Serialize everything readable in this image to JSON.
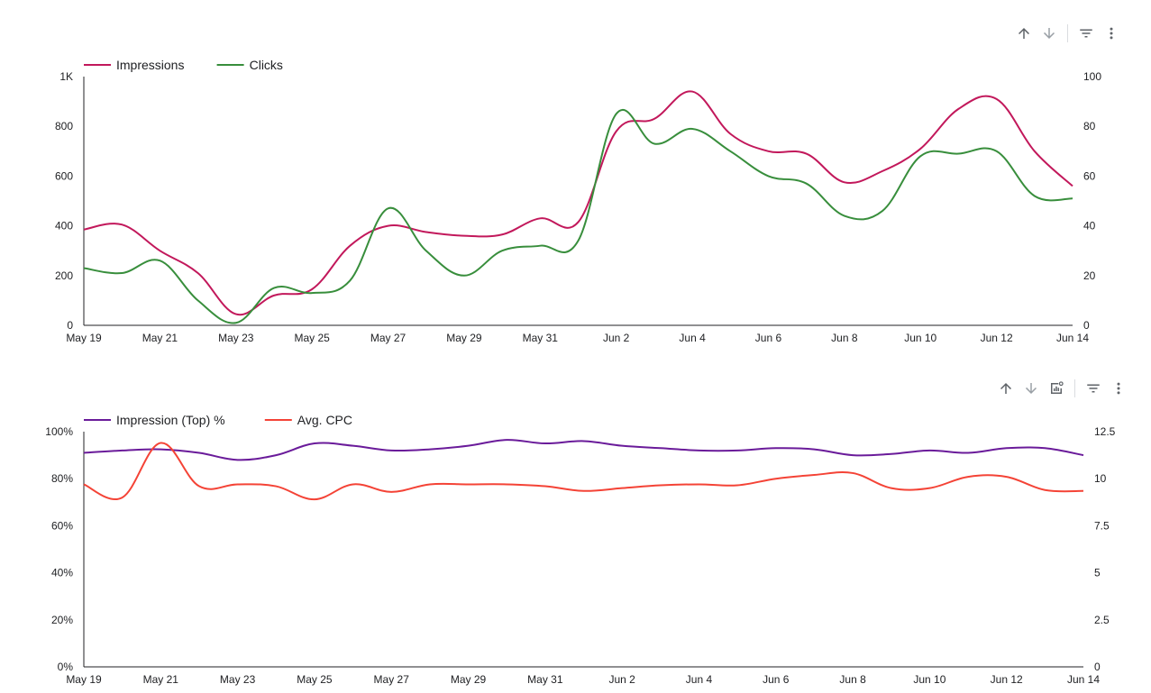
{
  "colors": {
    "impressions": "#c2185b",
    "clicks": "#388e3c",
    "impr_top": "#6a1b9a",
    "avg_cpc": "#f44336",
    "axis": "#5f6368",
    "icon": "#5f6368",
    "icon_disabled": "#9aa0a6"
  },
  "toolbar_top": {
    "icons": [
      "arrow-up-icon",
      "arrow-down-icon",
      "filter-icon",
      "more-vert-icon"
    ]
  },
  "toolbar_bottom": {
    "icons": [
      "arrow-up-icon",
      "arrow-down-icon",
      "chart-settings-icon",
      "filter-icon",
      "more-vert-icon"
    ]
  },
  "chart_data": [
    {
      "type": "line",
      "legend": [
        "Impressions",
        "Clicks"
      ],
      "x": [
        "May 19",
        "May 20",
        "May 21",
        "May 22",
        "May 23",
        "May 24",
        "May 25",
        "May 26",
        "May 27",
        "May 28",
        "May 29",
        "May 30",
        "May 31",
        "Jun 1",
        "Jun 2",
        "Jun 3",
        "Jun 4",
        "Jun 5",
        "Jun 6",
        "Jun 7",
        "Jun 8",
        "Jun 9",
        "Jun 10",
        "Jun 11",
        "Jun 12",
        "Jun 13",
        "Jun 14"
      ],
      "xticks": [
        "May 19",
        "May 21",
        "May 23",
        "May 25",
        "May 27",
        "May 29",
        "May 31",
        "Jun 2",
        "Jun 4",
        "Jun 6",
        "Jun 8",
        "Jun 10",
        "Jun 12",
        "Jun 14"
      ],
      "y_left": {
        "ylim": [
          0,
          1000
        ],
        "ticks": [
          0,
          200,
          400,
          600,
          800,
          1000
        ],
        "tick_labels": [
          "0",
          "200",
          "400",
          "600",
          "800",
          "1K"
        ]
      },
      "y_right": {
        "ylim": [
          0,
          100
        ],
        "ticks": [
          0,
          20,
          40,
          60,
          80,
          100
        ],
        "tick_labels": [
          "0",
          "20",
          "40",
          "60",
          "80",
          "100"
        ]
      },
      "series": [
        {
          "name": "Impressions",
          "axis": "left",
          "values": [
            385,
            405,
            300,
            210,
            45,
            120,
            145,
            320,
            400,
            375,
            360,
            365,
            430,
            415,
            780,
            830,
            940,
            770,
            700,
            690,
            575,
            620,
            710,
            870,
            910,
            700,
            560
          ]
        },
        {
          "name": "Clicks",
          "axis": "right",
          "values": [
            23,
            21,
            26,
            10,
            1,
            15,
            13,
            18,
            47,
            30,
            20,
            30,
            32,
            34,
            85,
            73,
            79,
            70,
            60,
            57,
            44,
            46,
            68,
            69,
            70,
            52,
            51
          ]
        }
      ]
    },
    {
      "type": "line",
      "legend": [
        "Impression (Top) %",
        "Avg. CPC"
      ],
      "x": [
        "May 19",
        "May 20",
        "May 21",
        "May 22",
        "May 23",
        "May 24",
        "May 25",
        "May 26",
        "May 27",
        "May 28",
        "May 29",
        "May 30",
        "May 31",
        "Jun 1",
        "Jun 2",
        "Jun 3",
        "Jun 4",
        "Jun 5",
        "Jun 6",
        "Jun 7",
        "Jun 8",
        "Jun 9",
        "Jun 10",
        "Jun 11",
        "Jun 12",
        "Jun 13",
        "Jun 14"
      ],
      "xticks": [
        "May 19",
        "May 21",
        "May 23",
        "May 25",
        "May 27",
        "May 29",
        "May 31",
        "Jun 2",
        "Jun 4",
        "Jun 6",
        "Jun 8",
        "Jun 10",
        "Jun 12",
        "Jun 14"
      ],
      "y_left": {
        "ylim": [
          0,
          100
        ],
        "ticks": [
          0,
          20,
          40,
          60,
          80,
          100
        ],
        "tick_labels": [
          "0%",
          "20%",
          "40%",
          "60%",
          "80%",
          "100%"
        ]
      },
      "y_right": {
        "ylim": [
          0,
          12.5
        ],
        "ticks": [
          0,
          2.5,
          5,
          7.5,
          10,
          12.5
        ],
        "tick_labels": [
          "0",
          "2.5",
          "5",
          "7.5",
          "10",
          "12.5"
        ]
      },
      "series": [
        {
          "name": "Impression (Top) %",
          "axis": "left",
          "values": [
            91,
            92,
            92.5,
            91,
            88,
            90,
            95,
            94,
            92,
            92.5,
            94,
            96.5,
            95,
            96,
            94,
            93,
            92,
            92,
            93,
            92.5,
            90,
            90.5,
            92,
            91,
            93,
            93,
            90
          ]
        },
        {
          "name": "Avg. CPC",
          "axis": "right",
          "values": [
            9.7,
            9.0,
            11.9,
            9.6,
            9.7,
            9.6,
            8.9,
            9.7,
            9.3,
            9.7,
            9.7,
            9.7,
            9.6,
            9.35,
            9.5,
            9.65,
            9.7,
            9.65,
            10.0,
            10.2,
            10.3,
            9.5,
            9.5,
            10.1,
            10.1,
            9.4,
            9.35
          ]
        }
      ]
    }
  ]
}
